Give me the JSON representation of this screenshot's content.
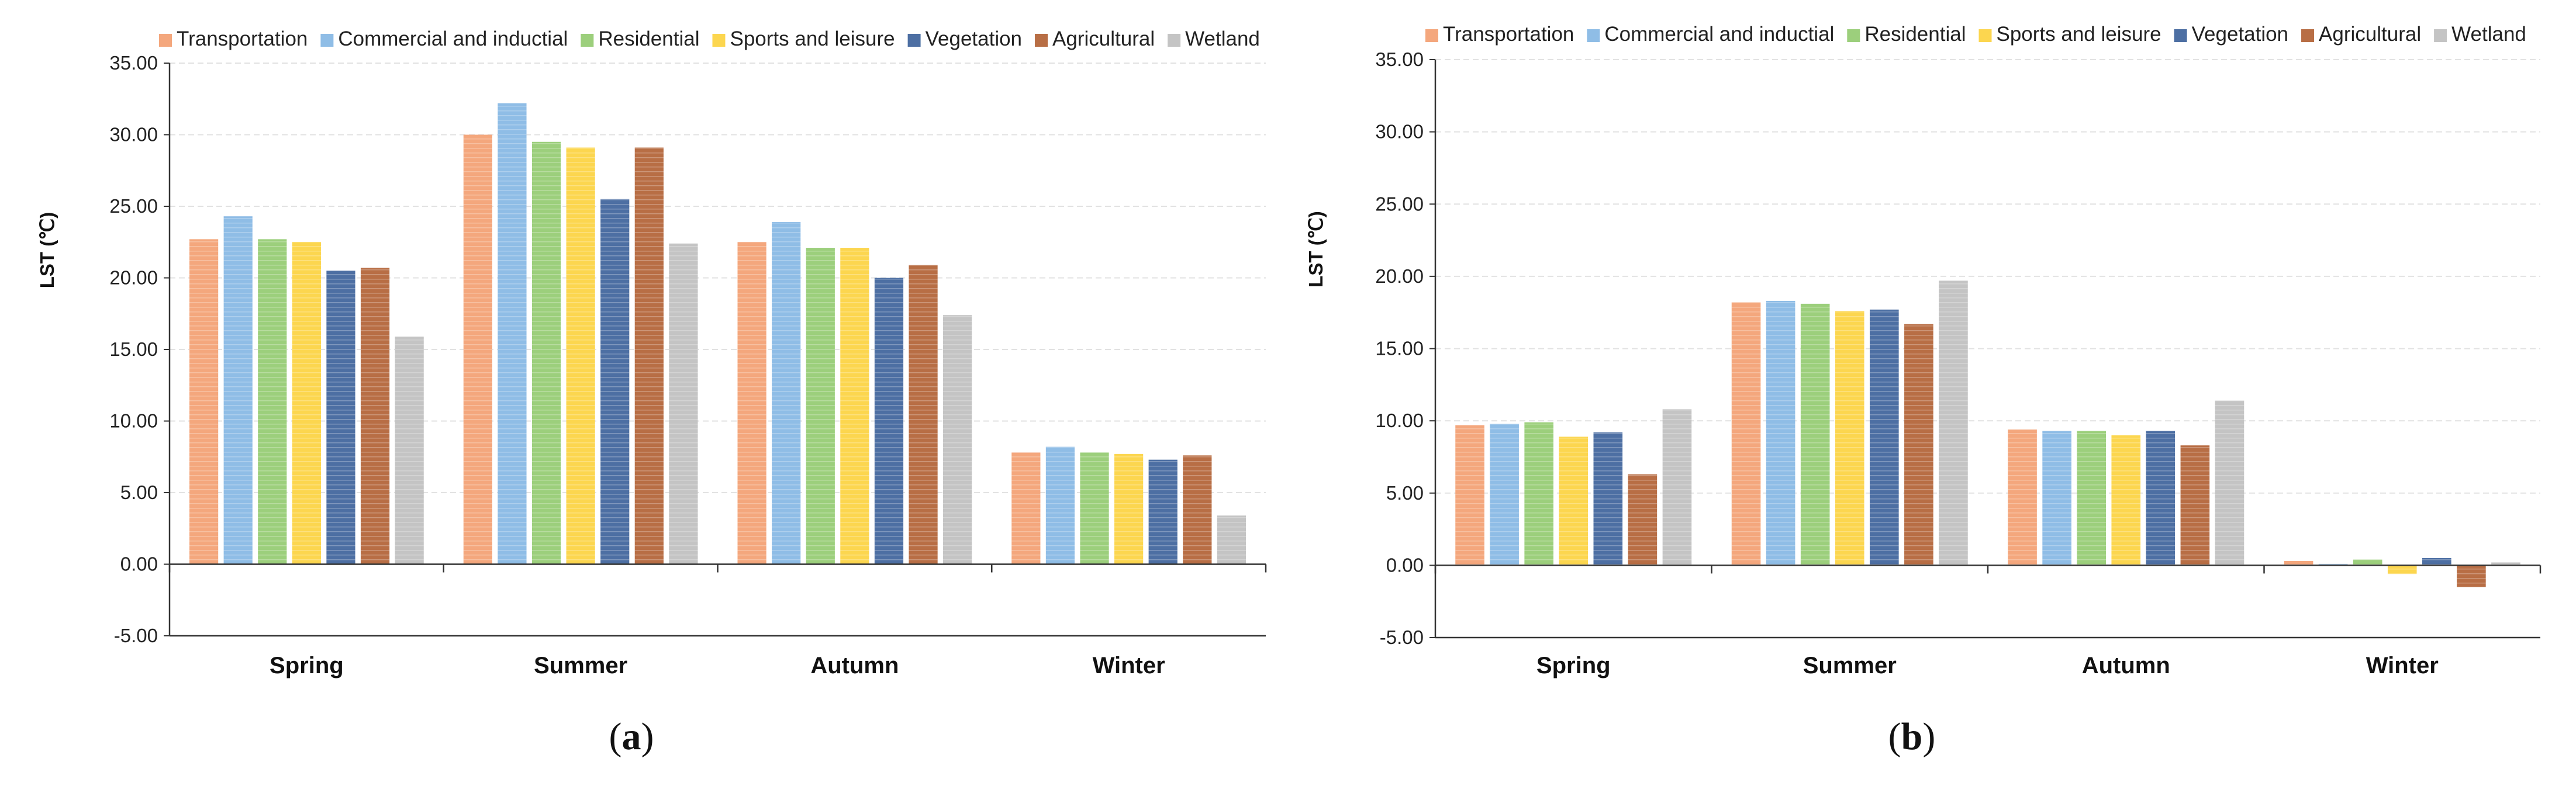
{
  "chart_data": [
    {
      "id": "a",
      "type": "bar",
      "panel_label": "a",
      "ylabel": "LST (℃)",
      "ylim": [
        -5,
        35
      ],
      "ytick_labels": [
        "-5.00",
        "0.00",
        "5.00",
        "10.00",
        "15.00",
        "20.00",
        "25.00",
        "30.00",
        "35.00"
      ],
      "grid": true,
      "legend": "top",
      "categories": [
        "Spring",
        "Summer",
        "Autumn",
        "Winter"
      ],
      "series": [
        {
          "name": "Transportation",
          "values": [
            22.7,
            30.0,
            22.5,
            7.8
          ]
        },
        {
          "name": "Commercial and inductial",
          "values": [
            24.3,
            32.2,
            23.9,
            8.2
          ]
        },
        {
          "name": "Residential",
          "values": [
            22.7,
            29.5,
            22.1,
            7.8
          ]
        },
        {
          "name": "Sports and leisure",
          "values": [
            22.5,
            29.1,
            22.1,
            7.7
          ]
        },
        {
          "name": "Vegetation",
          "values": [
            20.5,
            25.5,
            20.0,
            7.3
          ]
        },
        {
          "name": "Agricultural",
          "values": [
            20.7,
            29.1,
            20.9,
            7.6
          ]
        },
        {
          "name": "Wetland",
          "values": [
            15.9,
            22.4,
            17.4,
            3.4
          ]
        }
      ]
    },
    {
      "id": "b",
      "type": "bar",
      "panel_label": "b",
      "ylabel": "LST (℃)",
      "ylim": [
        -5,
        35
      ],
      "ytick_labels": [
        "-5.00",
        "0.00",
        "5.00",
        "10.00",
        "15.00",
        "20.00",
        "25.00",
        "30.00",
        "35.00"
      ],
      "grid": true,
      "legend": "top",
      "categories": [
        "Spring",
        "Summer",
        "Autumn",
        "Winter"
      ],
      "series": [
        {
          "name": "Transportation",
          "values": [
            9.7,
            18.2,
            9.4,
            0.3
          ]
        },
        {
          "name": "Commercial and inductial",
          "values": [
            9.8,
            18.3,
            9.3,
            0.1
          ]
        },
        {
          "name": "Residential",
          "values": [
            9.9,
            18.1,
            9.3,
            0.4
          ]
        },
        {
          "name": "Sports and leisure",
          "values": [
            8.9,
            17.6,
            9.0,
            -0.6
          ]
        },
        {
          "name": "Vegetation",
          "values": [
            9.2,
            17.7,
            9.3,
            0.5
          ]
        },
        {
          "name": "Agricultural",
          "values": [
            6.3,
            16.7,
            8.3,
            -1.5
          ]
        },
        {
          "name": "Wetland",
          "values": [
            10.8,
            19.7,
            11.4,
            0.2
          ]
        }
      ]
    }
  ],
  "colors": {
    "Transportation": "#f4a77d",
    "Commercial and inductial": "#8fbde6",
    "Residential": "#9ccf7c",
    "Sports and leisure": "#fcd64f",
    "Vegetation": "#4d6fa3",
    "Agricultural": "#b86e45",
    "Wetland": "#c4c4c4",
    "grid": "#e2e2e2",
    "axis": "#333333"
  }
}
